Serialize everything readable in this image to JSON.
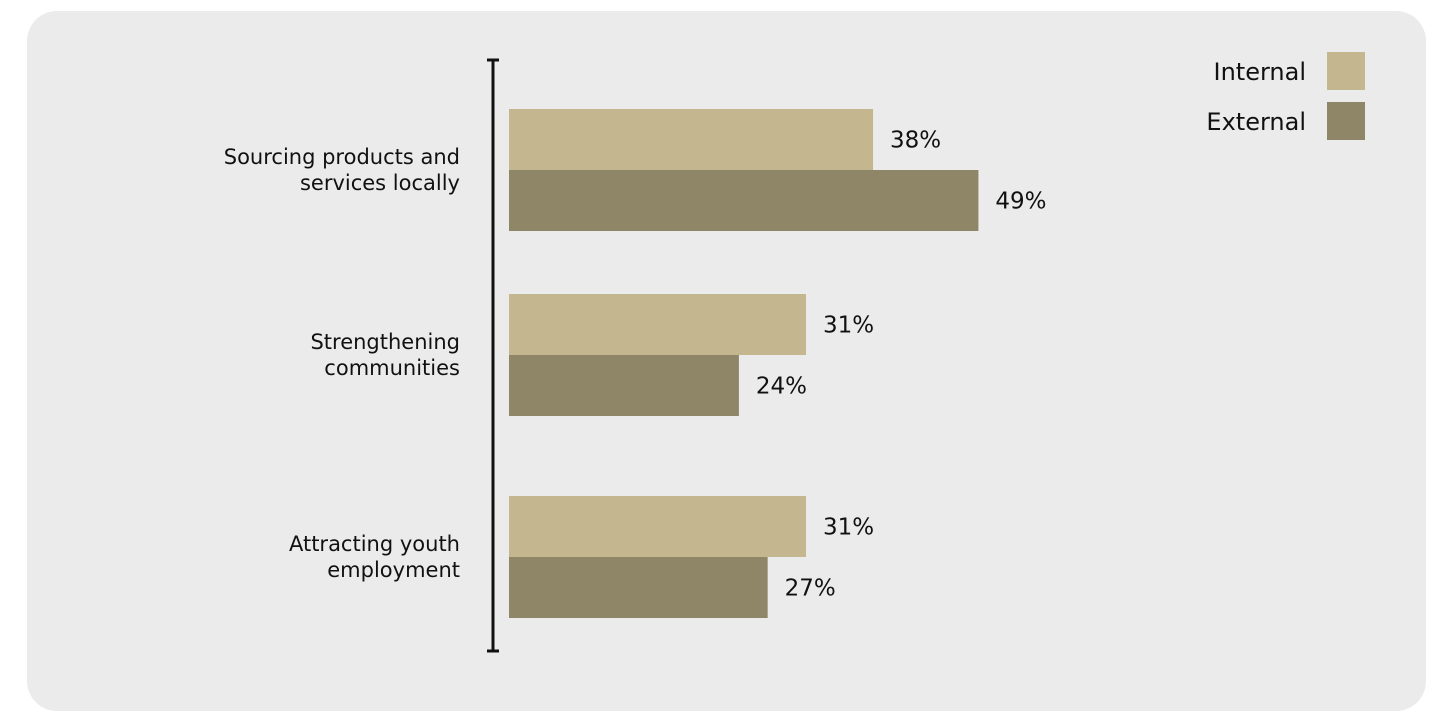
{
  "chart_data": {
    "type": "bar",
    "orientation": "horizontal",
    "categories": [
      [
        "Sourcing products and",
        "services locally"
      ],
      [
        "Strengthening",
        "communities"
      ],
      [
        "Attracting youth",
        "employment"
      ]
    ],
    "series": [
      {
        "name": "Internal",
        "values": [
          38,
          31,
          31
        ],
        "labels": [
          "38%",
          "31%",
          "31%"
        ],
        "color": "#c4b68f"
      },
      {
        "name": "External",
        "values": [
          49,
          24,
          27
        ],
        "labels": [
          "49%",
          "24%",
          "27%"
        ],
        "color": "#8f8668"
      }
    ],
    "legend_position": "top-right",
    "xlim": [
      0,
      100
    ],
    "grid": false,
    "value_unit": "%"
  }
}
